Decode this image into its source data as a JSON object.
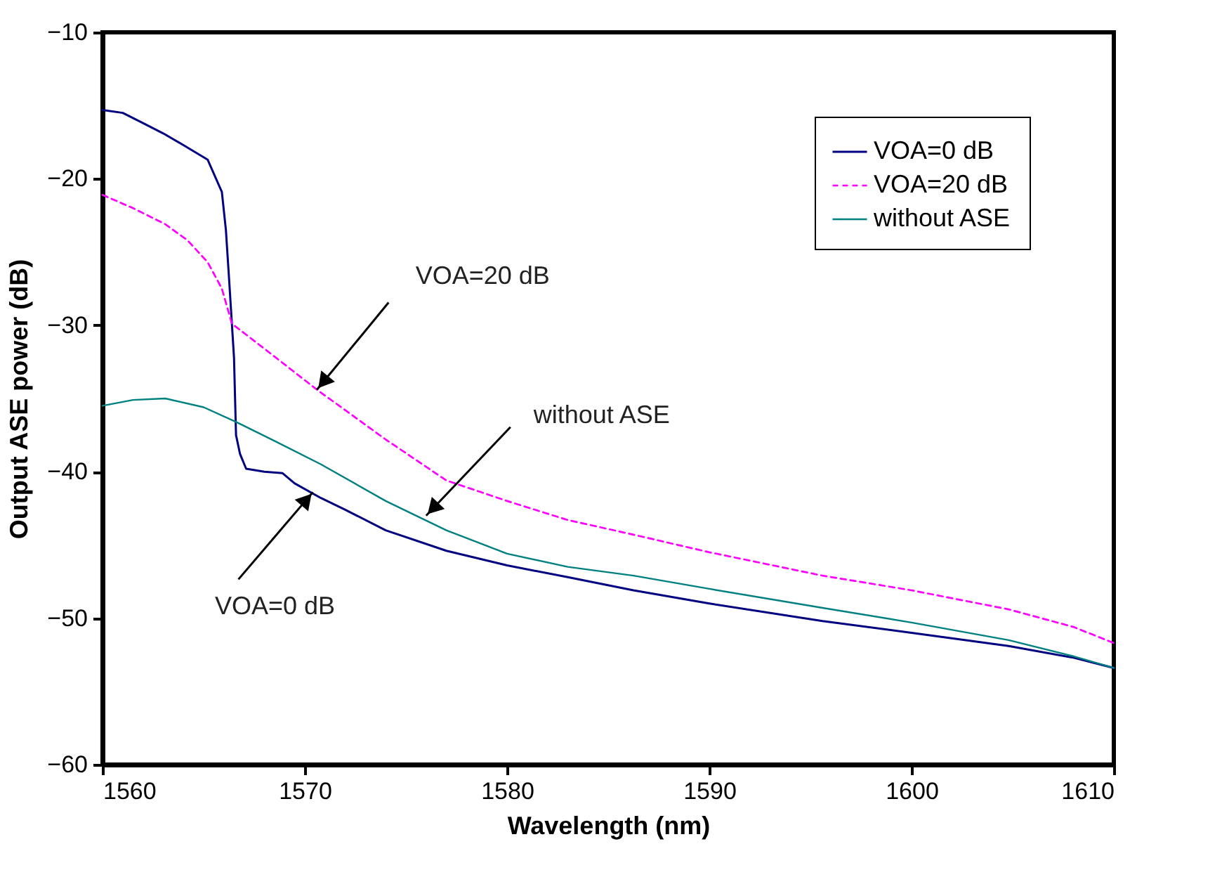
{
  "chart_data": {
    "type": "line",
    "xlabel": "Wavelength (nm)",
    "ylabel": "Output ASE power (dB)",
    "xlim": [
      1560,
      1610
    ],
    "xticks": [
      1560,
      1570,
      1580,
      1590,
      1600,
      1610
    ],
    "ylim": [
      -60,
      -10
    ],
    "yticks": [
      -60,
      -50,
      -40,
      -30,
      -20,
      -10
    ],
    "grid": false,
    "legend": "top right",
    "series": [
      {
        "name": "VOA=0 dB",
        "color": "#000080",
        "line_style": "solid",
        "x": [
          1560,
          1561,
          1562,
          1563,
          1564,
          1565.2,
          1565.9,
          1566.1,
          1566.25,
          1566.5,
          1566.6,
          1566.8,
          1567.1,
          1568,
          1568.9,
          1569.5,
          1570.8,
          1572,
          1574,
          1577,
          1580,
          1583,
          1586.25,
          1590,
          1595.6,
          1600,
          1604.8,
          1608,
          1610
        ],
        "values": [
          -15.3,
          -15.5,
          -16.2,
          -16.9,
          -17.7,
          -18.7,
          -20.9,
          -23.5,
          -26.7,
          -32.2,
          -37.5,
          -38.8,
          -39.8,
          -40.0,
          -40.1,
          -40.8,
          -41.8,
          -42.6,
          -44.0,
          -45.4,
          -46.4,
          -47.2,
          -48.1,
          -49.0,
          -50.2,
          -51.0,
          -51.9,
          -52.7,
          -53.4
        ]
      },
      {
        "name": "VOA=20 dB",
        "color": "#ff00ff",
        "line_style": "dashed",
        "x": [
          1560,
          1561.5,
          1563.1,
          1564.2,
          1565.2,
          1565.9,
          1566.4,
          1568,
          1570.6,
          1574,
          1577,
          1580,
          1583,
          1586.25,
          1590,
          1595.6,
          1600,
          1604.8,
          1608,
          1610
        ],
        "values": [
          -21.1,
          -22.0,
          -23.1,
          -24.2,
          -25.7,
          -27.5,
          -29.9,
          -31.6,
          -34.4,
          -37.8,
          -40.6,
          -42.0,
          -43.3,
          -44.3,
          -45.5,
          -47.1,
          -48.1,
          -49.4,
          -50.6,
          -51.7
        ]
      },
      {
        "name": "without ASE",
        "color": "#008080",
        "line_style": "solid",
        "x": [
          1560,
          1561.5,
          1563.1,
          1565,
          1566.6,
          1568.5,
          1570.8,
          1574,
          1577,
          1580,
          1583,
          1586.25,
          1590,
          1595.6,
          1600,
          1604.8,
          1608,
          1610
        ],
        "values": [
          -35.5,
          -35.1,
          -35.0,
          -35.6,
          -36.6,
          -37.9,
          -39.5,
          -42.0,
          -44.0,
          -45.6,
          -46.5,
          -47.1,
          -48.0,
          -49.3,
          -50.3,
          -51.5,
          -52.6,
          -53.4
        ]
      }
    ],
    "annotations": [
      {
        "text": "VOA=20 dB",
        "x": 1570.6,
        "y": -34.4
      },
      {
        "text": "without ASE",
        "x": 1576.0,
        "y": -43.0
      },
      {
        "text": "VOA=0 dB",
        "x": 1570.4,
        "y": -41.4
      }
    ]
  }
}
